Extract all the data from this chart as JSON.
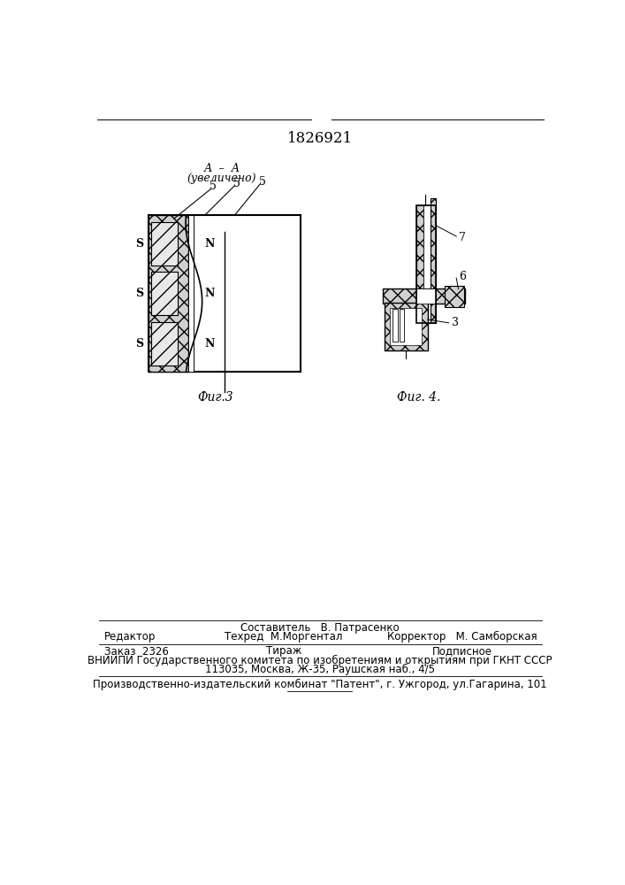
{
  "patent_number": "1826921",
  "fig3_label": "Фиг.3",
  "fig4_label": "Фиг. 4.",
  "section_line1": "А  –  А",
  "section_line2": "(увеличено)",
  "footer_line1": "Составитель   В. Патрасенко",
  "footer_line2_left": "Редактор",
  "footer_line2_mid": "Техред  М.Моргентал",
  "footer_line2_right": "Корректор   М. Самборская",
  "footer_line3_left": "Заказ  2326",
  "footer_line3_mid": "Тираж",
  "footer_line3_right": "Подписное",
  "footer_line4": "ВНИИПИ Государственного комитета по изобретениям и открытиям при ГКНТ СССР",
  "footer_line5": "113035, Москва, Ж-35, Раушская наб., 4/5",
  "footer_line6": "Производственно-издательский комбинат \"Патент\", г. Ужгород, ул.Гагарина, 101",
  "bg_color": "#ffffff",
  "line_color": "#000000"
}
